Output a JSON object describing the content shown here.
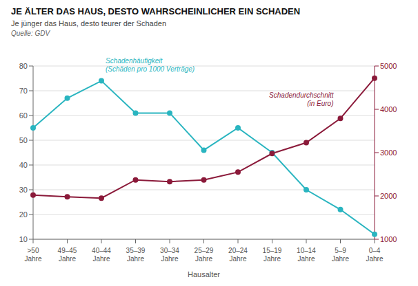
{
  "chart_data": {
    "type": "line",
    "title": "JE ÄLTER DAS HAUS, DESTO WAHRSCHEINLICHER EIN SCHADEN",
    "subtitle": "Je jünger das Haus, desto teurer der Schaden",
    "source": "Quelle: GDV",
    "x_label": "Hausalter",
    "categories": [
      ">50\nJahre",
      "49–45\nJahre",
      "40–44\nJahre",
      "35–39\nJahre",
      "30–34\nJahre",
      "25–29\nJahre",
      "20–24\nJahre",
      "15–19\nJahre",
      "10–14\nJahre",
      "5–9\nJahre",
      "0–4\nJahre"
    ],
    "series": [
      {
        "name": "Schadenhäufigkeit\n(Schäden pro 1000 Verträge)",
        "color": "#2ab5c0",
        "values": [
          55,
          67,
          74,
          61,
          61,
          46,
          55,
          45,
          30,
          22,
          12
        ]
      },
      {
        "name": "Schadendurchschnitt\n(in Euro)",
        "color": "#8b1a3a",
        "values": [
          2020,
          1980,
          1950,
          2370,
          2330,
          2370,
          2550,
          2980,
          3230,
          3790,
          4720
        ],
        "axis": "y2"
      }
    ],
    "ylim": [
      10,
      80
    ],
    "yticks": [
      10,
      20,
      30,
      40,
      50,
      60,
      70,
      80
    ],
    "y2lim": [
      1000,
      5000
    ],
    "y2ticks": [
      1000,
      2000,
      3000,
      4000,
      5000
    ],
    "grid": true,
    "marker": "circle"
  }
}
